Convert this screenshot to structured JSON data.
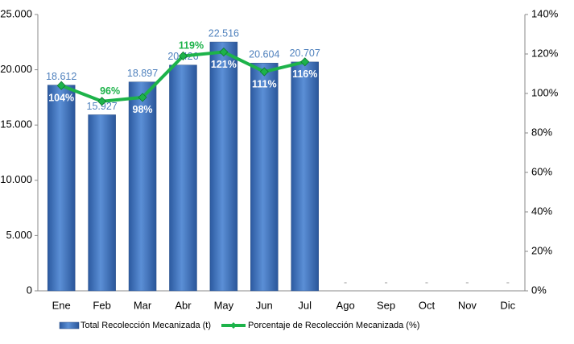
{
  "chart_data": {
    "type": "bar-line",
    "categories": [
      "Ene",
      "Feb",
      "Mar",
      "Abr",
      "May",
      "Jun",
      "Jul",
      "Ago",
      "Sep",
      "Oct",
      "Nov",
      "Dic"
    ],
    "series": [
      {
        "name": "Total Recolección Mecanizada (t)",
        "color": "#4a7ebb",
        "type": "bar",
        "values": [
          18612,
          15927,
          18897,
          20426,
          22516,
          20604,
          20707,
          0,
          0,
          0,
          0,
          0
        ],
        "value_labels": [
          "18.612",
          "15.927",
          "18.897",
          "20.426",
          "22.516",
          "20.604",
          "20.707",
          "-",
          "-",
          "-",
          "-",
          "-"
        ]
      },
      {
        "name": "Porcentaje de Recolección Mecanizada (%)",
        "color": "#1db34a",
        "type": "line",
        "axis": "y2",
        "values": [
          104,
          96,
          98,
          119,
          121,
          111,
          116,
          null,
          null,
          null,
          null,
          null
        ],
        "value_labels": [
          "104%",
          "96%",
          "98%",
          "119%",
          "121%",
          "111%",
          "116%",
          null,
          null,
          null,
          null,
          null
        ]
      }
    ],
    "ylim": [
      0,
      25000
    ],
    "yticks": [
      0,
      {
        "value": 5000,
        "label": "5.000"
      },
      {
        "value": 10000,
        "label": "10.000"
      },
      {
        "value": 15000,
        "label": "15.000"
      },
      {
        "value": 20000,
        "label": "20.000"
      },
      {
        "value": 25000,
        "label": "25.000"
      }
    ],
    "y2lim": [
      0,
      140
    ],
    "y2ticks": [
      {
        "value": 0,
        "label": "0%"
      },
      {
        "value": 20,
        "label": "20%"
      },
      {
        "value": 40,
        "label": "40%"
      },
      {
        "value": 60,
        "label": "60%"
      },
      {
        "value": 80,
        "label": "80%"
      },
      {
        "value": 100,
        "label": "100%"
      },
      {
        "value": 120,
        "label": "120%"
      },
      {
        "value": 140,
        "label": "140%"
      }
    ],
    "legend": "bottom"
  }
}
